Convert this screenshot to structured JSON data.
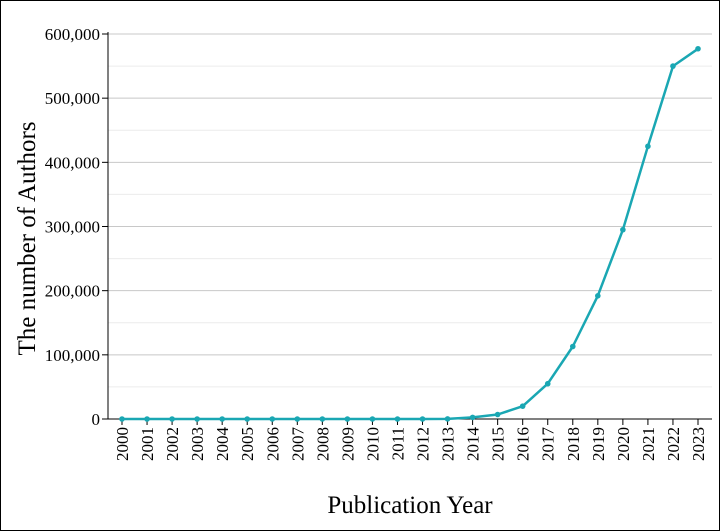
{
  "chart_data": {
    "type": "line",
    "title": "",
    "xlabel": "Publication Year",
    "ylabel": "The number of Authors",
    "x": [
      "2000",
      "2001",
      "2002",
      "2003",
      "2004",
      "2005",
      "2006",
      "2007",
      "2008",
      "2009",
      "2010",
      "2011",
      "2012",
      "2013",
      "2014",
      "2015",
      "2016",
      "2017",
      "2018",
      "2019",
      "2020",
      "2021",
      "2022",
      "2023"
    ],
    "series": [
      {
        "values": [
          0,
          0,
          0,
          0,
          0,
          0,
          0,
          0,
          0,
          0,
          0,
          0,
          0,
          200,
          2500,
          7000,
          20000,
          55000,
          113000,
          192000,
          295000,
          425000,
          550000,
          577000
        ],
        "color": "#1aa7b3"
      }
    ],
    "ylim": [
      0,
      600000
    ],
    "yticks": [
      0,
      100000,
      200000,
      300000,
      400000,
      500000,
      600000
    ],
    "ytick_labels": [
      "0",
      "100,000",
      "200,000",
      "300,000",
      "400,000",
      "500,000",
      "600,000"
    ],
    "grid": true,
    "legend": "none"
  }
}
